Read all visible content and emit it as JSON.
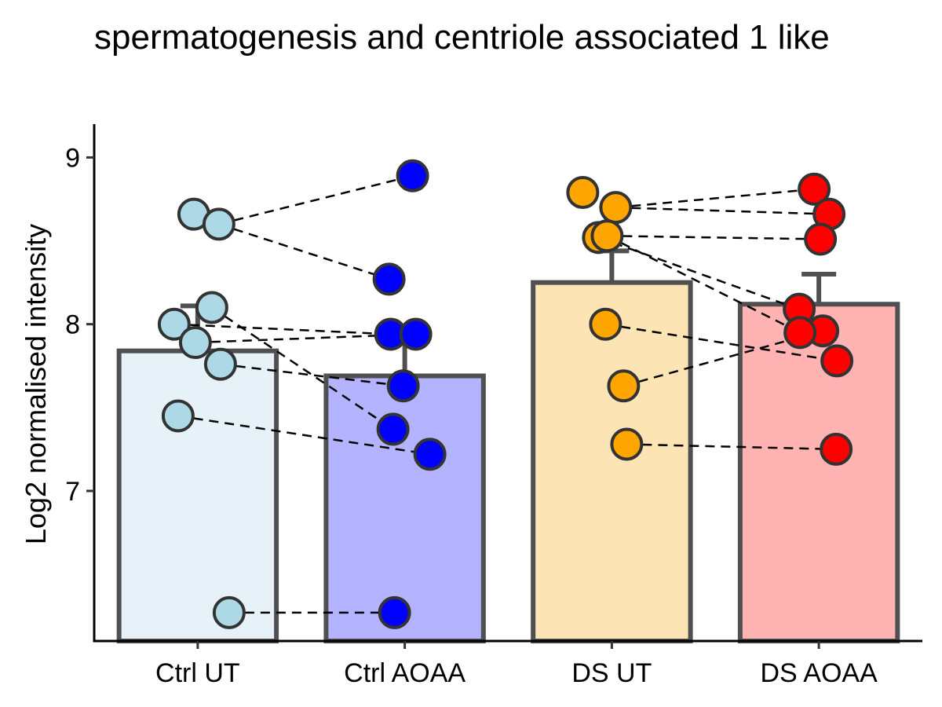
{
  "chart_data": {
    "type": "bar",
    "title": "spermatogenesis and centriole associated 1 like",
    "xlabel": "",
    "ylabel": "Log2 normalised intensity",
    "ylim": [
      6.1,
      9.2
    ],
    "yticks": [
      7,
      8,
      9
    ],
    "grid": false,
    "legend": "none",
    "categories": [
      "Ctrl UT",
      "Ctrl AOAA",
      "DS UT",
      "DS AOAA"
    ],
    "bar_values": [
      7.84,
      7.69,
      8.25,
      8.12
    ],
    "error_upper": [
      8.11,
      7.97,
      8.44,
      8.3
    ],
    "bar_fill_colors": [
      "#e6f2f8",
      "#b3b3ff",
      "#fde4b4",
      "#ffb3b3"
    ],
    "point_colors": [
      "#add8e6",
      "#0000ff",
      "#ffa500",
      "#ff0000"
    ],
    "bar_outline_color": "#505050",
    "points": [
      [
        8.66,
        8.6,
        8.1,
        8.0,
        7.89,
        7.76,
        7.45,
        6.27
      ],
      [
        8.89,
        8.27,
        7.94,
        7.94,
        7.63,
        7.37,
        7.22,
        6.27
      ],
      [
        8.79,
        8.7,
        8.52,
        8.53,
        8.0,
        7.63,
        7.28
      ],
      [
        8.81,
        8.66,
        8.51,
        8.09,
        7.96,
        7.95,
        7.78,
        7.25
      ]
    ],
    "pairs": [
      {
        "from": [
          0,
          1
        ],
        "to": [
          1,
          0
        ]
      },
      {
        "from": [
          0,
          1
        ],
        "to": [
          1,
          1
        ]
      },
      {
        "from": [
          0,
          3
        ],
        "to": [
          1,
          2
        ]
      },
      {
        "from": [
          0,
          4
        ],
        "to": [
          1,
          3
        ]
      },
      {
        "from": [
          0,
          2
        ],
        "to": [
          1,
          5
        ]
      },
      {
        "from": [
          0,
          5
        ],
        "to": [
          1,
          4
        ]
      },
      {
        "from": [
          0,
          6
        ],
        "to": [
          1,
          6
        ]
      },
      {
        "from": [
          0,
          7
        ],
        "to": [
          1,
          7
        ]
      },
      {
        "from": [
          2,
          1
        ],
        "to": [
          3,
          0
        ]
      },
      {
        "from": [
          2,
          1
        ],
        "to": [
          3,
          1
        ]
      },
      {
        "from": [
          2,
          3
        ],
        "to": [
          3,
          2
        ]
      },
      {
        "from": [
          2,
          2
        ],
        "to": [
          3,
          3
        ]
      },
      {
        "from": [
          2,
          3
        ],
        "to": [
          3,
          5
        ]
      },
      {
        "from": [
          2,
          4
        ],
        "to": [
          3,
          6
        ]
      },
      {
        "from": [
          2,
          5
        ],
        "to": [
          3,
          4
        ]
      },
      {
        "from": [
          2,
          6
        ],
        "to": [
          3,
          7
        ]
      }
    ]
  }
}
